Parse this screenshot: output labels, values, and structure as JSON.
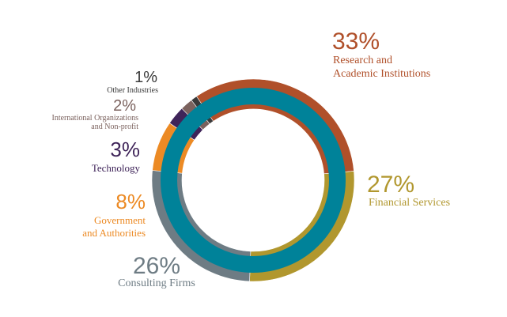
{
  "chart_data": {
    "type": "pie",
    "title": "",
    "slices": [
      {
        "value": 33,
        "percent_label": "33%",
        "label_lines": [
          "Research and",
          "Academic Institutions"
        ],
        "color": "#B0502A"
      },
      {
        "value": 27,
        "percent_label": "27%",
        "label_lines": [
          "Financial Services"
        ],
        "color": "#B1972E"
      },
      {
        "value": 26,
        "percent_label": "26%",
        "label_lines": [
          "Consulting Firms"
        ],
        "color": "#6E7C84"
      },
      {
        "value": 8,
        "percent_label": "8%",
        "label_lines": [
          "Government",
          "and Authorities"
        ],
        "color": "#EC8A24"
      },
      {
        "value": 3,
        "percent_label": "3%",
        "label_lines": [
          "Technology"
        ],
        "color": "#3F2459"
      },
      {
        "value": 2,
        "percent_label": "2%",
        "label_lines": [
          "International Organizations",
          "and Non-profit"
        ],
        "color": "#7B625E"
      },
      {
        "value": 1,
        "percent_label": "1%",
        "label_lines": [
          "Other Industries"
        ],
        "color": "#3A3A3A"
      }
    ],
    "inner_ring_color": "#008299",
    "start_angle_deg": 326
  }
}
